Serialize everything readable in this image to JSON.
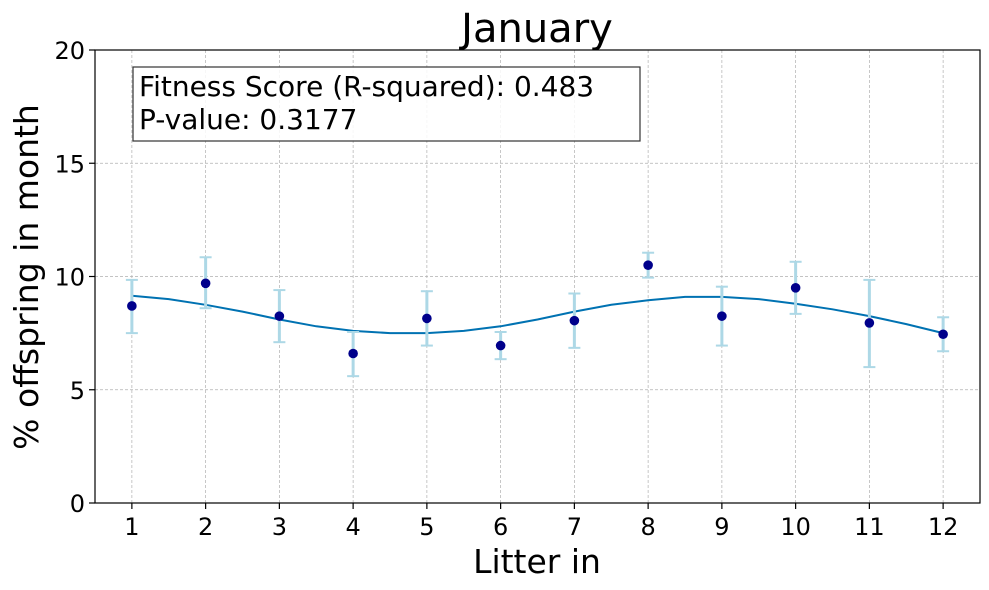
{
  "chart_data": {
    "type": "scatter",
    "title": "January",
    "xlabel": "Litter in",
    "ylabel": "% offspring in month",
    "xlim": [
      0.5,
      12.5
    ],
    "ylim": [
      0,
      20
    ],
    "xticks": [
      "1",
      "2",
      "3",
      "4",
      "5",
      "6",
      "7",
      "8",
      "9",
      "10",
      "11",
      "12"
    ],
    "yticks": [
      "0",
      "5",
      "10",
      "15",
      "20"
    ],
    "grid": true,
    "annotation": {
      "line1": "Fitness Score (R-squared): 0.483",
      "line2": "P-value: 0.3177"
    },
    "points": {
      "x": [
        1,
        2,
        3,
        4,
        5,
        6,
        7,
        8,
        9,
        10,
        11,
        12
      ],
      "y": [
        8.7,
        9.7,
        8.25,
        6.6,
        8.15,
        6.95,
        8.05,
        10.5,
        8.25,
        9.5,
        7.95,
        7.45
      ],
      "err_low": [
        7.5,
        8.6,
        7.1,
        5.6,
        6.95,
        6.35,
        6.85,
        9.95,
        6.95,
        8.35,
        6.0,
        6.7
      ],
      "err_high": [
        9.85,
        10.85,
        9.4,
        7.55,
        9.35,
        7.55,
        9.25,
        11.05,
        9.55,
        10.65,
        9.85,
        8.2
      ],
      "color": "#00008b",
      "error_color": "#add8e6"
    },
    "fit_curve": {
      "color": "#0072b2",
      "x": [
        1,
        1.5,
        2,
        2.5,
        3,
        3.5,
        4,
        4.5,
        5,
        5.5,
        6,
        6.5,
        7,
        7.5,
        8,
        8.5,
        9,
        9.5,
        10,
        10.5,
        11,
        11.5,
        12
      ],
      "y": [
        9.15,
        9.0,
        8.75,
        8.45,
        8.1,
        7.8,
        7.6,
        7.5,
        7.5,
        7.6,
        7.8,
        8.1,
        8.45,
        8.75,
        8.95,
        9.1,
        9.1,
        9.0,
        8.8,
        8.55,
        8.25,
        7.9,
        7.5
      ]
    }
  }
}
